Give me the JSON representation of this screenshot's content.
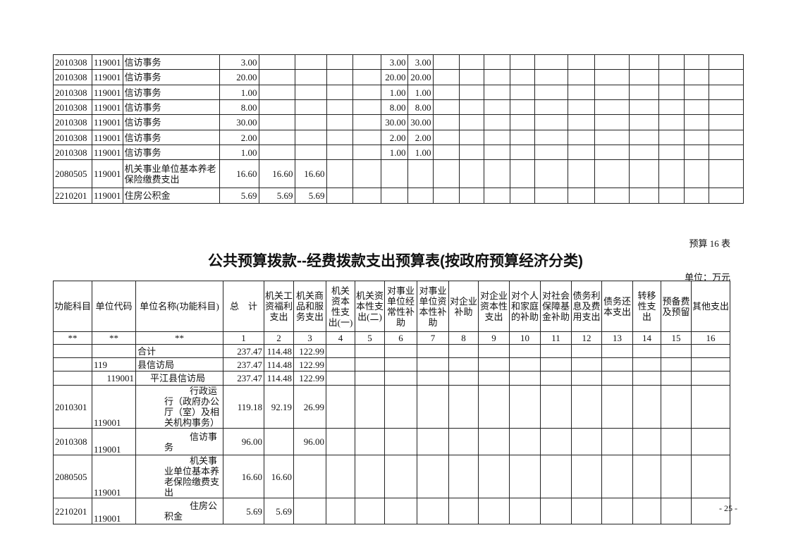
{
  "top_table": {
    "rows": [
      {
        "code": "2010308",
        "unit": "119001",
        "name": "信访事务",
        "total": "3.00",
        "c5": "",
        "c6": "",
        "c7": "",
        "c8": "",
        "c9": "3.00",
        "c10": "3.00"
      },
      {
        "code": "2010308",
        "unit": "119001",
        "name": "信访事务",
        "total": "20.00",
        "c5": "",
        "c6": "",
        "c7": "",
        "c8": "",
        "c9": "20.00",
        "c10": "20.00"
      },
      {
        "code": "2010308",
        "unit": "119001",
        "name": "信访事务",
        "total": "1.00",
        "c5": "",
        "c6": "",
        "c7": "",
        "c8": "",
        "c9": "1.00",
        "c10": "1.00"
      },
      {
        "code": "2010308",
        "unit": "119001",
        "name": "信访事务",
        "total": "8.00",
        "c5": "",
        "c6": "",
        "c7": "",
        "c8": "",
        "c9": "8.00",
        "c10": "8.00"
      },
      {
        "code": "2010308",
        "unit": "119001",
        "name": "信访事务",
        "total": "30.00",
        "c5": "",
        "c6": "",
        "c7": "",
        "c8": "",
        "c9": "30.00",
        "c10": "30.00"
      },
      {
        "code": "2010308",
        "unit": "119001",
        "name": "信访事务",
        "total": "2.00",
        "c5": "",
        "c6": "",
        "c7": "",
        "c8": "",
        "c9": "2.00",
        "c10": "2.00"
      },
      {
        "code": "2010308",
        "unit": "119001",
        "name": "信访事务",
        "total": "1.00",
        "c5": "",
        "c6": "",
        "c7": "",
        "c8": "",
        "c9": "1.00",
        "c10": "1.00"
      },
      {
        "code": "2080505",
        "unit": "119001",
        "name": "机关事业单位基本养老保险缴费支出",
        "total": "16.60",
        "c5": "16.60",
        "c6": "16.60",
        "c7": "",
        "c8": "",
        "c9": "",
        "c10": ""
      },
      {
        "code": "2210201",
        "unit": "119001",
        "name": "住房公积金",
        "total": "5.69",
        "c5": "5.69",
        "c6": "5.69",
        "c7": "",
        "c8": "",
        "c9": "",
        "c10": ""
      }
    ]
  },
  "table_number": "预算 16 表",
  "title": "公共预算拨款--经费拨款支出预算表(按政府预算经济分类)",
  "unit_label": "单位：万元",
  "main_table": {
    "headers": [
      "功能科目",
      "单位代码",
      "单位名称(功能科目)",
      "总　计",
      "机关工资福利支出",
      "机关商品和服务支出",
      "机关资本性支出(一)",
      "机关资本性支出(二)",
      "对事业单位经常性补助",
      "对事业单位资本性补助",
      "对企业补助",
      "对企业资本性支出",
      "对个人和家庭的补助",
      "对社会保障基金补助",
      "债务利息及费用支出",
      "债务还本支出",
      "转移性支出",
      "预备费及预留",
      "其他支出"
    ],
    "index_row": [
      "**",
      "**",
      "**",
      "1",
      "2",
      "3",
      "4",
      "5",
      "6",
      "7",
      "8",
      "9",
      "10",
      "11",
      "12",
      "13",
      "14",
      "15",
      "16"
    ],
    "rows": [
      {
        "code": "",
        "unit": "",
        "name": "合计",
        "total": "237.47",
        "c2": "114.48",
        "c3": "122.99"
      },
      {
        "code": "",
        "unit": "119",
        "name": "县信访局",
        "total": "237.47",
        "c2": "114.48",
        "c3": "122.99"
      },
      {
        "code": "",
        "unit": "119001",
        "name": "平江县信访局",
        "total": "237.47",
        "c2": "114.48",
        "c3": "122.99"
      },
      {
        "code": "2010301",
        "unit": "119001",
        "name": "行政运行（政府办公厅（室）及相关机构事务）",
        "total": "119.18",
        "c2": "92.19",
        "c3": "26.99"
      },
      {
        "code": "2010308",
        "unit": "119001",
        "name": "信访事务",
        "total": "96.00",
        "c2": "",
        "c3": "96.00"
      },
      {
        "code": "2080505",
        "unit": "119001",
        "name": "机关事业单位基本养老保险缴费支出",
        "total": "16.60",
        "c2": "16.60",
        "c3": ""
      },
      {
        "code": "2210201",
        "unit": "119001",
        "name": "住房公积金",
        "total": "5.69",
        "c2": "5.69",
        "c3": ""
      }
    ]
  },
  "page_number": "- 25 -"
}
